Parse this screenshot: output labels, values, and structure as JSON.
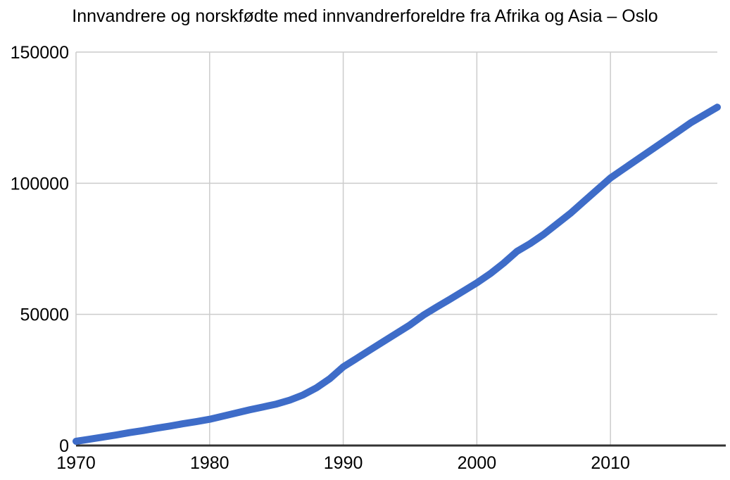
{
  "chart_data": {
    "type": "line",
    "title": "Innvandrere og norskfødte med innvandrerforeldre fra Afrika og Asia – Oslo",
    "xlabel": "",
    "ylabel": "",
    "xlim": [
      1970,
      2018
    ],
    "ylim": [
      0,
      150000
    ],
    "x_ticks": [
      1970,
      1980,
      1990,
      2000,
      2010
    ],
    "y_ticks": [
      0,
      50000,
      100000,
      150000
    ],
    "grid": true,
    "legend": "none",
    "series": [
      {
        "color": "#3e6cc8",
        "x": [
          1970,
          1971,
          1972,
          1973,
          1974,
          1975,
          1976,
          1977,
          1978,
          1979,
          1980,
          1981,
          1982,
          1983,
          1984,
          1985,
          1986,
          1987,
          1988,
          1989,
          1990,
          1991,
          1992,
          1993,
          1994,
          1995,
          1996,
          1997,
          1998,
          1999,
          2000,
          2001,
          2002,
          2003,
          2004,
          2005,
          2006,
          2007,
          2008,
          2009,
          2010,
          2011,
          2012,
          2013,
          2014,
          2015,
          2016,
          2017,
          2018
        ],
        "values": [
          1600,
          2400,
          3200,
          4000,
          4900,
          5700,
          6600,
          7400,
          8300,
          9100,
          10000,
          11200,
          12400,
          13600,
          14700,
          15800,
          17300,
          19300,
          22000,
          25500,
          30000,
          33200,
          36400,
          39600,
          42800,
          46000,
          49700,
          52800,
          55800,
          58900,
          62000,
          65500,
          69500,
          74000,
          77000,
          80500,
          84500,
          88500,
          93000,
          97500,
          102000,
          105500,
          109000,
          112500,
          116000,
          119500,
          123000,
          126000,
          129000
        ]
      }
    ]
  },
  "colors": {
    "line": "#3e6cc8",
    "gridline": "#cccccc",
    "axis_line": "#333333",
    "text": "#000000",
    "background": "#ffffff"
  }
}
